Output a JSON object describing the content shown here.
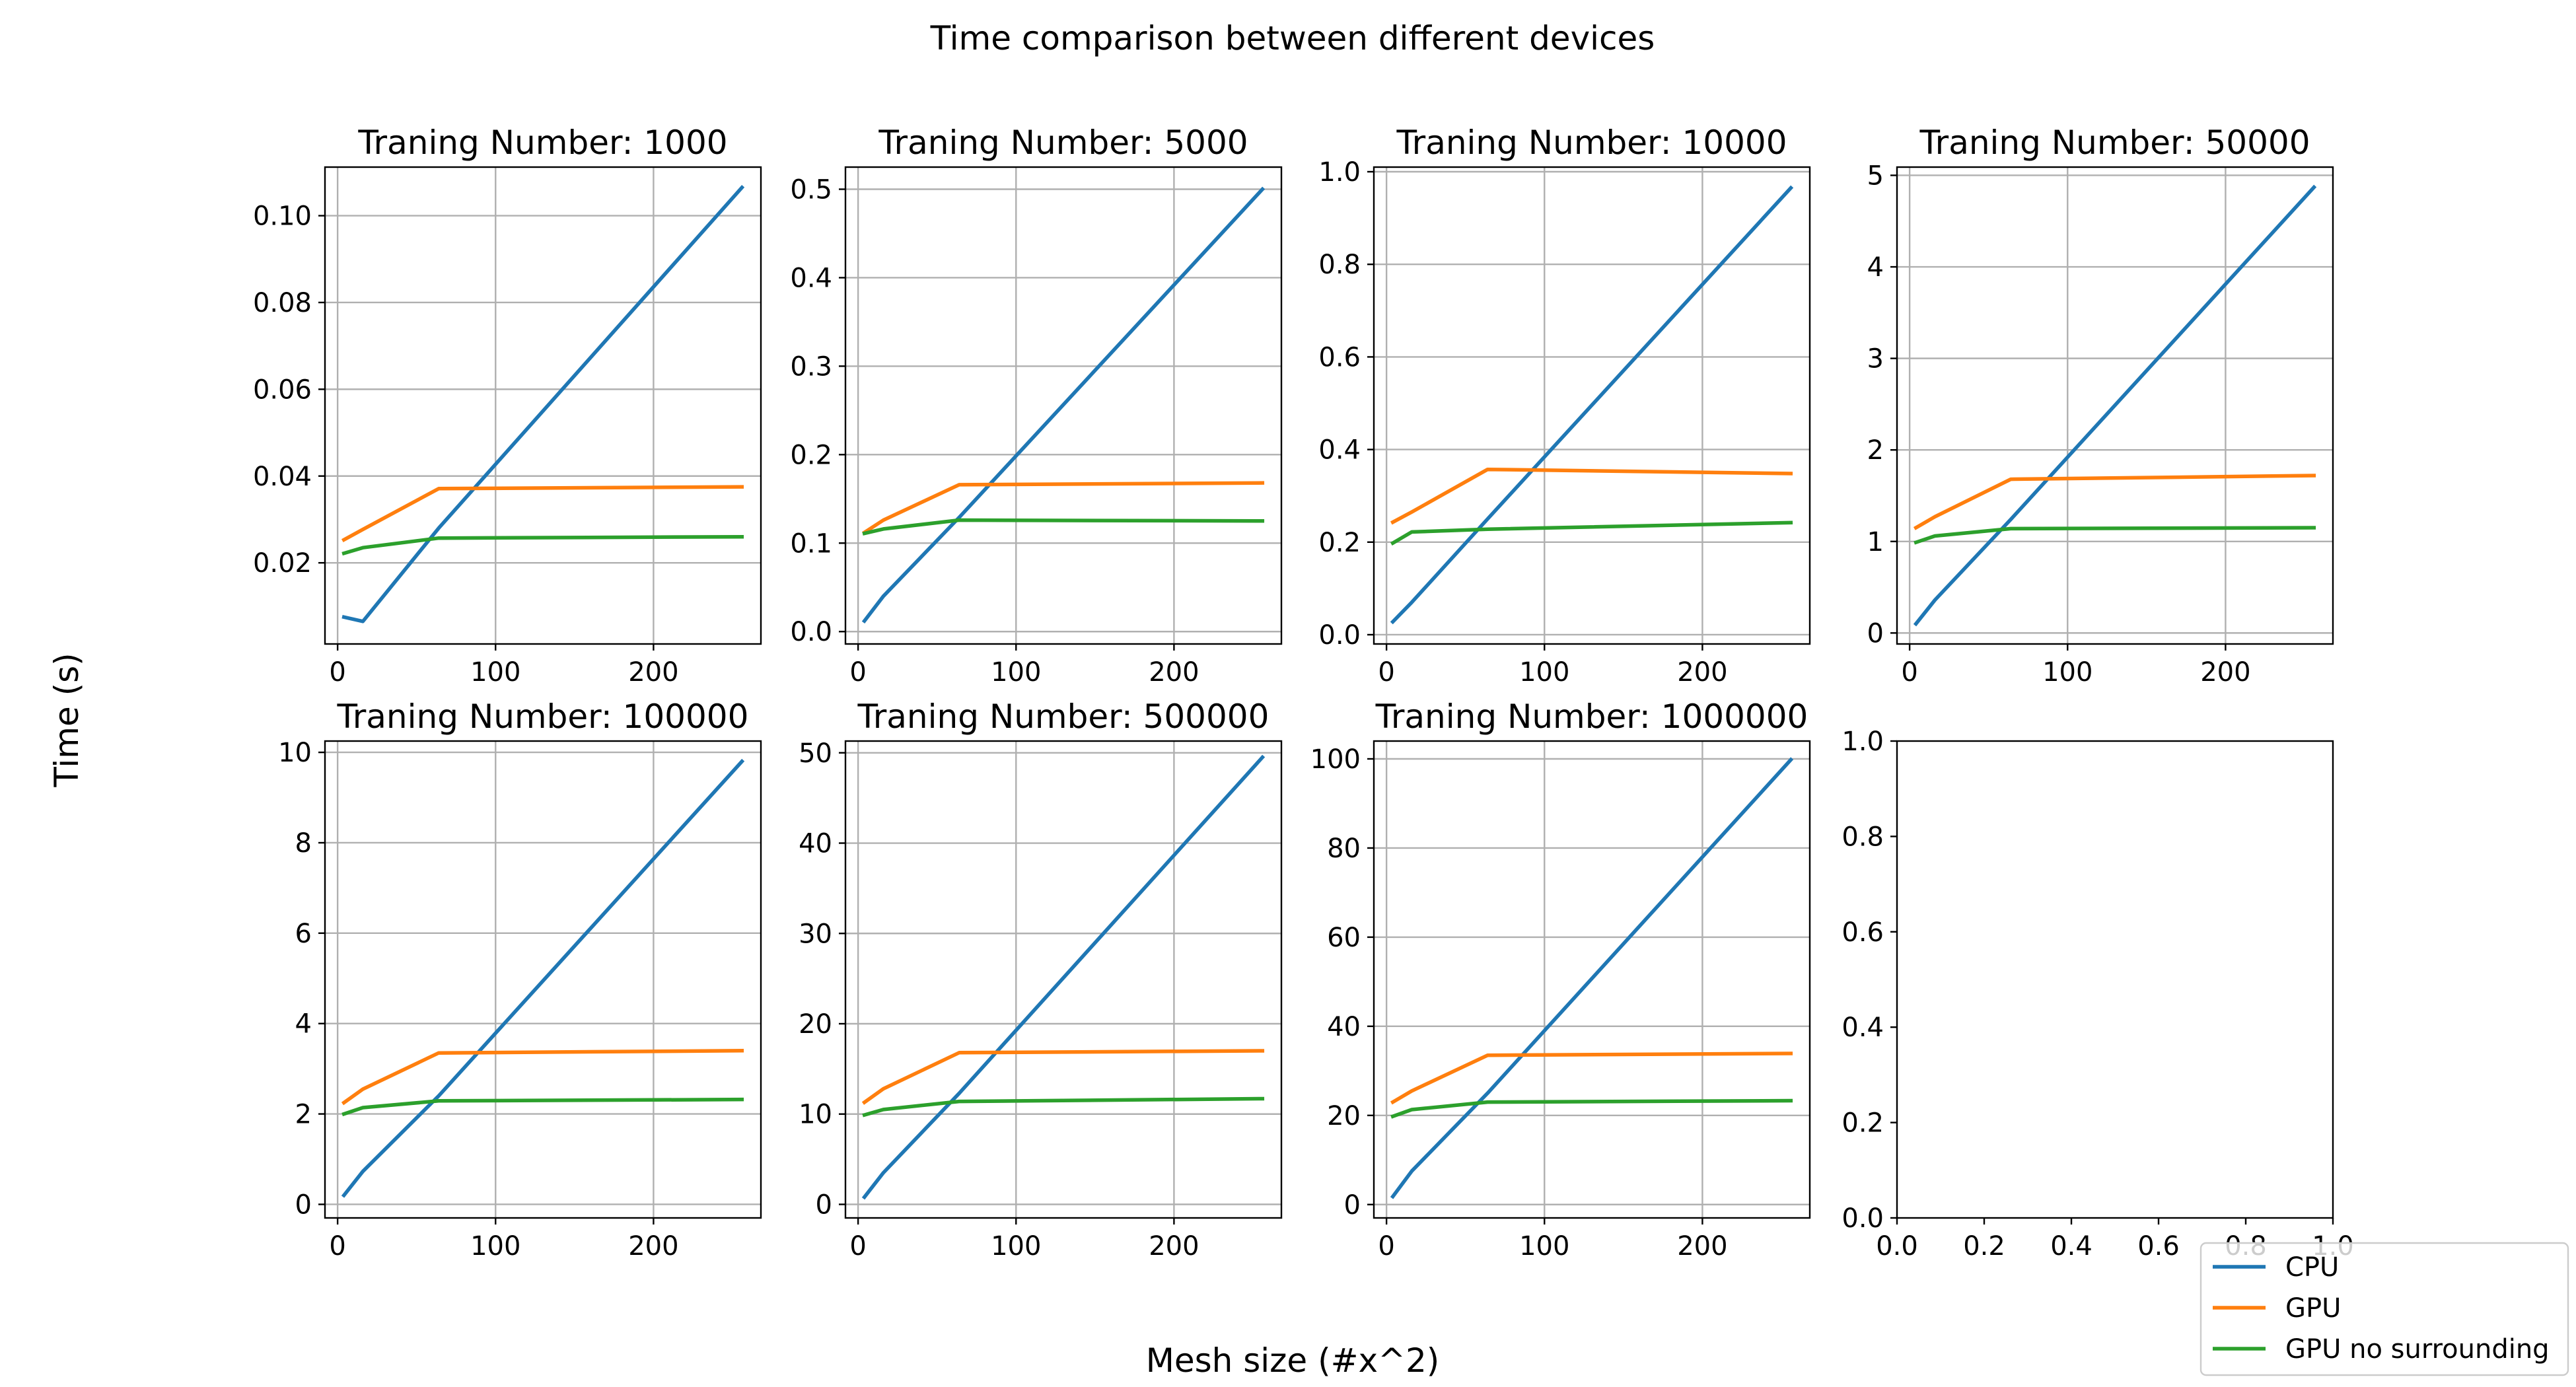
{
  "figure": {
    "suptitle": "Time comparison between different devices",
    "xlabel": "Mesh size (#x^2)",
    "ylabel": "Time (s)"
  },
  "legend": {
    "placement": "bottom-right",
    "entries": [
      {
        "label": "CPU",
        "color": "#1f77b4"
      },
      {
        "label": "GPU",
        "color": "#ff7f0e"
      },
      {
        "label": "GPU no surrounding",
        "color": "#2ca02c"
      }
    ]
  },
  "chart_data": [
    {
      "type": "line",
      "title": "Traning Number: 1000",
      "x": [
        4,
        16,
        64,
        256
      ],
      "xlim": [
        -8,
        268
      ],
      "xticks": [
        0,
        100,
        200
      ],
      "ylim": [
        0.0013,
        0.1112
      ],
      "yticks": [
        0.02,
        0.04,
        0.06,
        0.08,
        0.1
      ],
      "ytick_labels": [
        "0.02",
        "0.04",
        "0.06",
        "0.08",
        "0.10"
      ],
      "grid": true,
      "series": [
        {
          "name": "CPU",
          "values": [
            0.0075,
            0.0065,
            0.028,
            0.1065
          ]
        },
        {
          "name": "GPU",
          "values": [
            0.0253,
            0.0277,
            0.0371,
            0.0375
          ]
        },
        {
          "name": "GPU no surrounding",
          "values": [
            0.0222,
            0.0235,
            0.0257,
            0.026
          ]
        }
      ]
    },
    {
      "type": "line",
      "title": "Traning Number: 5000",
      "x": [
        4,
        16,
        64,
        256
      ],
      "xlim": [
        -8,
        268
      ],
      "xticks": [
        0,
        100,
        200
      ],
      "ylim": [
        -0.014,
        0.525
      ],
      "yticks": [
        0.0,
        0.1,
        0.2,
        0.3,
        0.4,
        0.5
      ],
      "ytick_labels": [
        "0.0",
        "0.1",
        "0.2",
        "0.3",
        "0.4",
        "0.5"
      ],
      "grid": true,
      "series": [
        {
          "name": "CPU",
          "values": [
            0.012,
            0.04,
            0.129,
            0.5
          ]
        },
        {
          "name": "GPU",
          "values": [
            0.112,
            0.126,
            0.166,
            0.168
          ]
        },
        {
          "name": "GPU no surrounding",
          "values": [
            0.111,
            0.116,
            0.126,
            0.125
          ]
        }
      ]
    },
    {
      "type": "line",
      "title": "Traning Number: 10000",
      "x": [
        4,
        16,
        64,
        256
      ],
      "xlim": [
        -8,
        268
      ],
      "xticks": [
        0,
        100,
        200
      ],
      "ylim": [
        -0.02,
        1.01
      ],
      "yticks": [
        0.0,
        0.2,
        0.4,
        0.6,
        0.8,
        1.0
      ],
      "ytick_labels": [
        "0.0",
        "0.2",
        "0.4",
        "0.6",
        "0.8",
        "1.0"
      ],
      "grid": true,
      "series": [
        {
          "name": "CPU",
          "values": [
            0.028,
            0.07,
            0.25,
            0.965
          ]
        },
        {
          "name": "GPU",
          "values": [
            0.243,
            0.265,
            0.357,
            0.348
          ]
        },
        {
          "name": "GPU no surrounding",
          "values": [
            0.198,
            0.222,
            0.228,
            0.242
          ]
        }
      ]
    },
    {
      "type": "line",
      "title": "Traning Number: 50000",
      "x": [
        4,
        16,
        64,
        256
      ],
      "xlim": [
        -8,
        268
      ],
      "xticks": [
        0,
        100,
        200
      ],
      "ylim": [
        -0.12,
        5.09
      ],
      "yticks": [
        0,
        1,
        2,
        3,
        4,
        5
      ],
      "ytick_labels": [
        "0",
        "1",
        "2",
        "3",
        "4",
        "5"
      ],
      "grid": true,
      "series": [
        {
          "name": "CPU",
          "values": [
            0.1,
            0.36,
            1.24,
            4.87
          ]
        },
        {
          "name": "GPU",
          "values": [
            1.15,
            1.27,
            1.68,
            1.72
          ]
        },
        {
          "name": "GPU no surrounding",
          "values": [
            0.99,
            1.06,
            1.14,
            1.15
          ]
        }
      ]
    },
    {
      "type": "line",
      "title": "Traning Number: 100000",
      "x": [
        4,
        16,
        64,
        256
      ],
      "xlim": [
        -8,
        268
      ],
      "xticks": [
        0,
        100,
        200
      ],
      "ylim": [
        -0.3,
        10.25
      ],
      "yticks": [
        0,
        2,
        4,
        6,
        8,
        10
      ],
      "ytick_labels": [
        "0",
        "2",
        "4",
        "6",
        "8",
        "10"
      ],
      "grid": true,
      "series": [
        {
          "name": "CPU",
          "values": [
            0.2,
            0.73,
            2.4,
            9.8
          ]
        },
        {
          "name": "GPU",
          "values": [
            2.25,
            2.55,
            3.35,
            3.4
          ]
        },
        {
          "name": "GPU no surrounding",
          "values": [
            2.0,
            2.14,
            2.29,
            2.32
          ]
        }
      ]
    },
    {
      "type": "line",
      "title": "Traning Number: 500000",
      "x": [
        4,
        16,
        64,
        256
      ],
      "xlim": [
        -8,
        268
      ],
      "xticks": [
        0,
        100,
        200
      ],
      "ylim": [
        -1.5,
        51.3
      ],
      "yticks": [
        0,
        10,
        20,
        30,
        40,
        50
      ],
      "ytick_labels": [
        "0",
        "10",
        "20",
        "30",
        "40",
        "50"
      ],
      "grid": true,
      "series": [
        {
          "name": "CPU",
          "values": [
            0.8,
            3.5,
            12.3,
            49.5
          ]
        },
        {
          "name": "GPU",
          "values": [
            11.3,
            12.8,
            16.8,
            17.0
          ]
        },
        {
          "name": "GPU no surrounding",
          "values": [
            9.9,
            10.5,
            11.4,
            11.7
          ]
        }
      ]
    },
    {
      "type": "line",
      "title": "Traning Number: 1000000",
      "x": [
        4,
        16,
        64,
        256
      ],
      "xlim": [
        -8,
        268
      ],
      "xticks": [
        0,
        100,
        200
      ],
      "ylim": [
        -3,
        104
      ],
      "yticks": [
        0,
        20,
        40,
        60,
        80,
        100
      ],
      "ytick_labels": [
        "0",
        "20",
        "40",
        "60",
        "80",
        "100"
      ],
      "grid": true,
      "series": [
        {
          "name": "CPU",
          "values": [
            1.8,
            7.5,
            25.0,
            99.8
          ]
        },
        {
          "name": "GPU",
          "values": [
            23.0,
            25.5,
            33.5,
            33.9
          ]
        },
        {
          "name": "GPU no surrounding",
          "values": [
            19.8,
            21.3,
            23.0,
            23.3
          ]
        }
      ]
    },
    {
      "type": "line",
      "title": "",
      "x": [],
      "xlim": [
        0,
        1
      ],
      "xticks": [
        0.0,
        0.2,
        0.4,
        0.6,
        0.8,
        1.0
      ],
      "xtick_labels": [
        "0.0",
        "0.2",
        "0.4",
        "0.6",
        "0.8",
        "1.0"
      ],
      "ylim": [
        0,
        1
      ],
      "yticks": [
        0.0,
        0.2,
        0.4,
        0.6,
        0.8,
        1.0
      ],
      "ytick_labels": [
        "0.0",
        "0.2",
        "0.4",
        "0.6",
        "0.8",
        "1.0"
      ],
      "grid": false,
      "series": []
    }
  ]
}
